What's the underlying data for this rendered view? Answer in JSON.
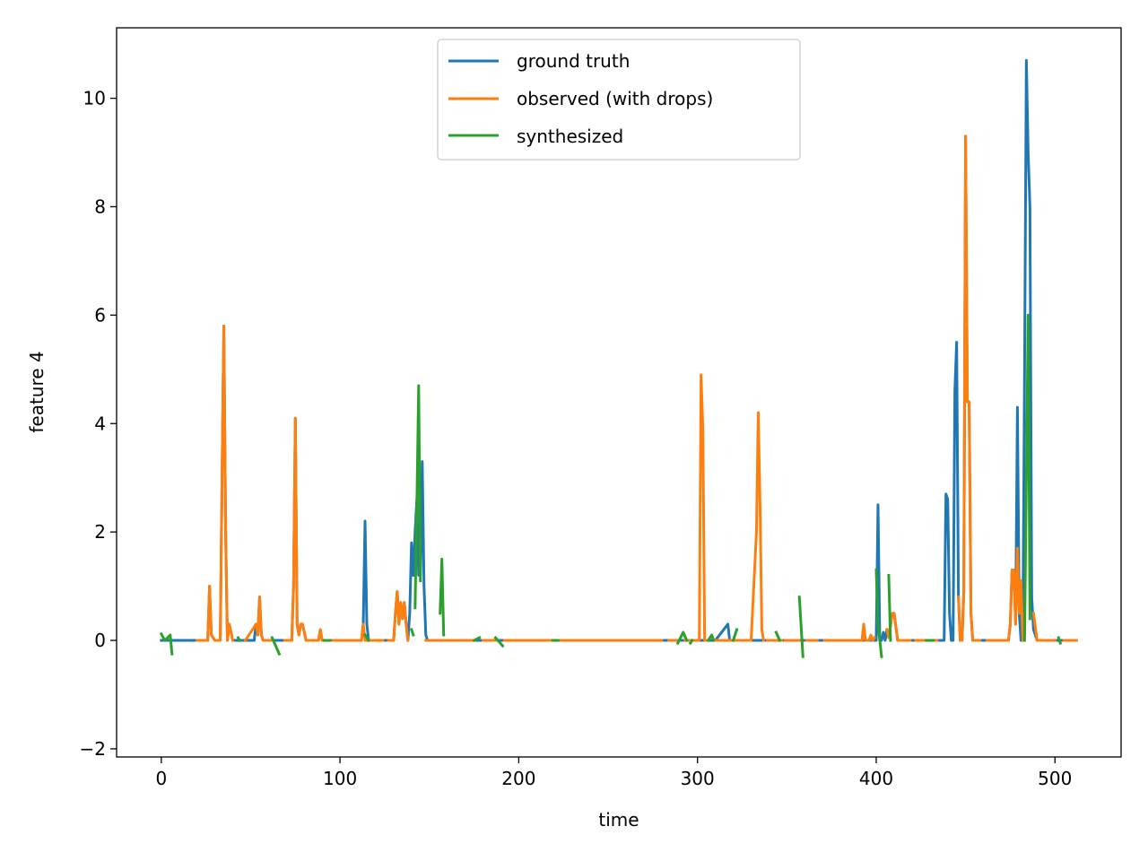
{
  "chart_data": {
    "type": "line",
    "xlabel": "time",
    "ylabel": "feature 4",
    "xlim": [
      -25,
      537
    ],
    "ylim": [
      -2.15,
      11.3
    ],
    "xticks": [
      0,
      100,
      200,
      300,
      400,
      500
    ],
    "xtick_labels": [
      "0",
      "100",
      "200",
      "300",
      "400",
      "500"
    ],
    "yticks": [
      -2,
      0,
      2,
      4,
      6,
      8,
      10
    ],
    "ytick_labels": [
      "−2",
      "0",
      "2",
      "4",
      "6",
      "8",
      "10"
    ],
    "grid": false,
    "legend_position": "top-center",
    "series": [
      {
        "name": "ground truth",
        "color": "#1f77b4",
        "segments": [
          [
            [
              0,
              0
            ],
            [
              26,
              0
            ],
            [
              27,
              1.0
            ],
            [
              28,
              0.1
            ],
            [
              30,
              0
            ],
            [
              33,
              0
            ],
            [
              34,
              3.0
            ],
            [
              35,
              5.8
            ],
            [
              36,
              2.0
            ],
            [
              37,
              0
            ],
            [
              38,
              0.3
            ],
            [
              40,
              0
            ],
            [
              52,
              0
            ],
            [
              53,
              0.3
            ],
            [
              54,
              0.1
            ],
            [
              55,
              0.8
            ],
            [
              56,
              0.1
            ],
            [
              57,
              0
            ],
            [
              73,
              0
            ],
            [
              74,
              1.0
            ],
            [
              75,
              4.1
            ],
            [
              76,
              0.3
            ],
            [
              77,
              0.1
            ],
            [
              78,
              0.3
            ],
            [
              79,
              0.3
            ],
            [
              81,
              0
            ],
            [
              88,
              0
            ],
            [
              89,
              0.2
            ],
            [
              90,
              0
            ],
            [
              112,
              0
            ],
            [
              113,
              0.3
            ],
            [
              114,
              2.2
            ],
            [
              115,
              0.3
            ],
            [
              116,
              0
            ],
            [
              130,
              0
            ],
            [
              131,
              0.5
            ],
            [
              132,
              0.9
            ],
            [
              133,
              0.3
            ],
            [
              134,
              0.7
            ],
            [
              135,
              0.4
            ],
            [
              136,
              0.7
            ],
            [
              137,
              0.3
            ],
            [
              138,
              0
            ],
            [
              139,
              0.5
            ],
            [
              140,
              1.8
            ],
            [
              141,
              1.2
            ],
            [
              142,
              2.0
            ],
            [
              143,
              2.6
            ],
            [
              144,
              1.2
            ],
            [
              145,
              1.2
            ],
            [
              146,
              3.3
            ],
            [
              147,
              1.0
            ],
            [
              148,
              0.1
            ],
            [
              149,
              0
            ],
            [
              310,
              0
            ],
            [
              317,
              0.3
            ],
            [
              318,
              0
            ],
            [
              400,
              0
            ],
            [
              401,
              2.5
            ],
            [
              402,
              0
            ],
            [
              403,
              0
            ],
            [
              404,
              0.15
            ],
            [
              405,
              0
            ],
            [
              406,
              0.2
            ],
            [
              407,
              0.05
            ],
            [
              409,
              0.5
            ],
            [
              410,
              0.5
            ],
            [
              412,
              0
            ],
            [
              438,
              0
            ],
            [
              439,
              2.7
            ],
            [
              440,
              2.6
            ],
            [
              441,
              0.5
            ],
            [
              442,
              0
            ],
            [
              443,
              0
            ],
            [
              444,
              4.6
            ],
            [
              445,
              5.5
            ],
            [
              446,
              0.8
            ],
            [
              447,
              0
            ],
            [
              448,
              0
            ],
            [
              449,
              0.9
            ],
            [
              450,
              9.3
            ],
            [
              451,
              4.4
            ],
            [
              452,
              4.4
            ],
            [
              453,
              0.5
            ],
            [
              454,
              0
            ],
            [
              468,
              0
            ],
            [
              474,
              0
            ],
            [
              475,
              0.3
            ],
            [
              476,
              1.3
            ],
            [
              477,
              1.3
            ],
            [
              478,
              0.3
            ],
            [
              479,
              4.3
            ],
            [
              480,
              0.5
            ],
            [
              481,
              0
            ],
            [
              482,
              0
            ],
            [
              483,
              5.0
            ],
            [
              484,
              10.7
            ],
            [
              485,
              9.0
            ],
            [
              486,
              8.0
            ],
            [
              487,
              0.8
            ],
            [
              488,
              0.2
            ],
            [
              490,
              0
            ],
            [
              512,
              0
            ]
          ]
        ]
      },
      {
        "name": "observed (with drops)",
        "color": "#ff7f0e",
        "segments": [
          [
            [
              20,
              0
            ],
            [
              26,
              0
            ],
            [
              27,
              1.0
            ],
            [
              28,
              0.1
            ],
            [
              30,
              0
            ],
            [
              33,
              0
            ],
            [
              34,
              3.0
            ],
            [
              35,
              5.8
            ],
            [
              36,
              2.0
            ],
            [
              37,
              0
            ],
            [
              38,
              0.3
            ],
            [
              40,
              0
            ]
          ],
          [
            [
              47,
              0
            ],
            [
              53,
              0.3
            ],
            [
              54,
              0.1
            ],
            [
              55,
              0.8
            ],
            [
              56,
              0.1
            ],
            [
              57,
              0
            ],
            [
              62,
              0
            ]
          ],
          [
            [
              69,
              0
            ],
            [
              73,
              0
            ],
            [
              74,
              1.0
            ],
            [
              75,
              4.1
            ],
            [
              76,
              0.3
            ],
            [
              77,
              0.1
            ],
            [
              78,
              0.3
            ],
            [
              79,
              0.3
            ],
            [
              81,
              0
            ],
            [
              88,
              0
            ],
            [
              89,
              0.2
            ],
            [
              90,
              0
            ],
            [
              94,
              0
            ]
          ],
          [
            [
              96,
              0
            ],
            [
              112,
              0
            ],
            [
              113,
              0.3
            ],
            [
              114,
              0
            ],
            [
              124,
              0
            ]
          ],
          [
            [
              127,
              0
            ],
            [
              130,
              0
            ],
            [
              131,
              0.5
            ],
            [
              132,
              0.9
            ],
            [
              133,
              0.3
            ],
            [
              134,
              0.7
            ],
            [
              135,
              0.4
            ],
            [
              136,
              0.7
            ],
            [
              137,
              0.3
            ],
            [
              138,
              0
            ]
          ],
          [
            [
              148,
              0
            ],
            [
              175,
              0
            ]
          ],
          [
            [
              180,
              0
            ],
            [
              188,
              0
            ]
          ],
          [
            [
              192,
              0
            ],
            [
              280,
              0
            ]
          ],
          [
            [
              284,
              0
            ],
            [
              289,
              0
            ]
          ],
          [
            [
              293,
              0
            ],
            [
              301,
              0
            ],
            [
              302,
              4.9
            ],
            [
              303,
              3.9
            ],
            [
              304,
              0
            ],
            [
              306,
              0
            ]
          ],
          [
            [
              310,
              0
            ],
            [
              330,
              0
            ],
            [
              333,
              2.0
            ],
            [
              334,
              4.2
            ],
            [
              335,
              2.5
            ],
            [
              336,
              0.2
            ],
            [
              337,
              0
            ]
          ],
          [
            [
              339,
              0
            ],
            [
              347,
              0
            ]
          ],
          [
            [
              349,
              0
            ],
            [
              357,
              0
            ]
          ],
          [
            [
              361,
              0
            ],
            [
              367,
              0
            ]
          ],
          [
            [
              371,
              0
            ],
            [
              392,
              0
            ],
            [
              393,
              0.3
            ],
            [
              394,
              0
            ],
            [
              396,
              0
            ],
            [
              397,
              0.1
            ],
            [
              398,
              0
            ],
            [
              399,
              0.05
            ]
          ],
          [
            [
              406,
              0.2
            ],
            [
              407,
              0.05
            ],
            [
              409,
              0.5
            ],
            [
              410,
              0.5
            ],
            [
              412,
              0
            ],
            [
              419,
              0
            ]
          ],
          [
            [
              422,
              0
            ],
            [
              434,
              0
            ]
          ],
          [
            [
              446,
              0.8
            ],
            [
              447,
              0
            ],
            [
              448,
              0
            ],
            [
              449,
              0.9
            ],
            [
              450,
              9.3
            ],
            [
              451,
              4.4
            ],
            [
              452,
              4.4
            ],
            [
              453,
              0.5
            ],
            [
              454,
              0
            ],
            [
              458,
              0
            ]
          ],
          [
            [
              462,
              0
            ],
            [
              474,
              0
            ],
            [
              475,
              0.3
            ],
            [
              476,
              1.3
            ],
            [
              477,
              1.3
            ],
            [
              478,
              0.3
            ],
            [
              479,
              1.7
            ],
            [
              480,
              0.5
            ],
            [
              481,
              1.1
            ],
            [
              482,
              0
            ]
          ],
          [
            [
              488,
              0.5
            ],
            [
              490,
              0
            ],
            [
              500,
              0
            ]
          ],
          [
            [
              505,
              0
            ],
            [
              512,
              0
            ]
          ]
        ]
      },
      {
        "name": "synthesized",
        "color": "#2ca02c",
        "segments": [
          [
            [
              0,
              0.12
            ],
            [
              2,
              0.0
            ],
            [
              5,
              0.1
            ],
            [
              6,
              -0.25
            ]
          ],
          [
            [
              43,
              0.05
            ],
            [
              44,
              0.0
            ]
          ],
          [
            [
              62,
              0.05
            ],
            [
              66,
              -0.25
            ]
          ],
          [
            [
              91,
              0.0
            ],
            [
              94,
              0.0
            ]
          ],
          [
            [
              114,
              0.1
            ],
            [
              116,
              0.0
            ]
          ],
          [
            [
              140,
              0.2
            ],
            [
              141,
              0.1
            ]
          ],
          [
            [
              142,
              0.6
            ],
            [
              143,
              2.5
            ],
            [
              144,
              4.7
            ],
            [
              145,
              1.1
            ]
          ],
          [
            [
              156,
              0.5
            ],
            [
              157,
              1.5
            ],
            [
              158,
              0.1
            ]
          ],
          [
            [
              175,
              0.0
            ],
            [
              178,
              0.05
            ]
          ],
          [
            [
              187,
              0.05
            ],
            [
              191,
              -0.1
            ]
          ],
          [
            [
              219,
              0.0
            ],
            [
              222,
              0.0
            ]
          ],
          [
            [
              289,
              -0.05
            ],
            [
              292,
              0.15
            ],
            [
              294,
              0.0
            ]
          ],
          [
            [
              296,
              -0.05
            ],
            [
              297,
              0.0
            ]
          ],
          [
            [
              306,
              0.0
            ],
            [
              308,
              0.1
            ],
            [
              309,
              0.0
            ]
          ],
          [
            [
              320,
              0.0
            ],
            [
              322,
              0.2
            ]
          ],
          [
            [
              344,
              0.15
            ],
            [
              346,
              0.0
            ]
          ],
          [
            [
              357,
              0.8
            ],
            [
              359,
              -0.3
            ]
          ],
          [
            [
              400,
              1.3
            ],
            [
              401,
              0.3
            ],
            [
              402,
              0.0
            ],
            [
              403,
              -0.3
            ]
          ],
          [
            [
              407,
              1.2
            ],
            [
              408,
              0.0
            ]
          ],
          [
            [
              428,
              0.0
            ],
            [
              432,
              0.0
            ]
          ],
          [
            [
              483,
              0.0
            ],
            [
              485,
              6.0
            ],
            [
              486,
              0.4
            ]
          ],
          [
            [
              502,
              0.05
            ],
            [
              503,
              -0.05
            ]
          ]
        ]
      }
    ]
  }
}
